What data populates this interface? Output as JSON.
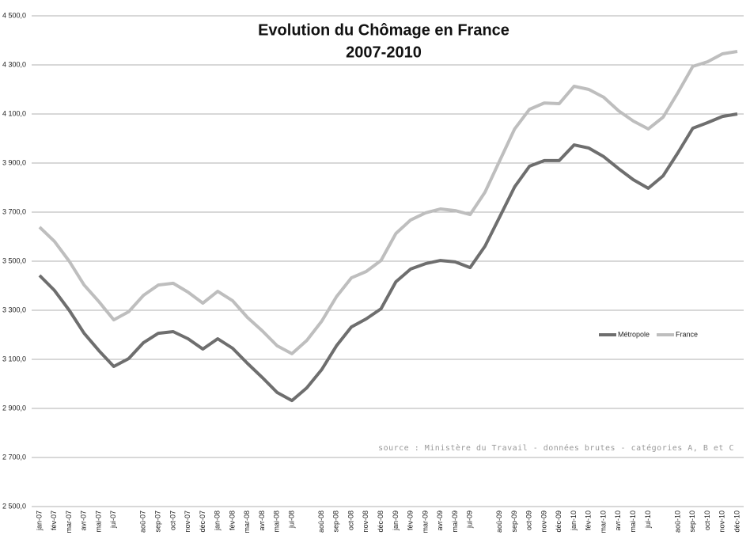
{
  "chart_data": {
    "type": "line",
    "title": "Evolution du Chômage en France",
    "subtitle": "2007-2010",
    "annotation": "source : Ministère du Travail - données brutes - catégories A, B et C",
    "categories": [
      "jan-07",
      "fév-07",
      "mar-07",
      "avr-07",
      "mai-07",
      "jui-07",
      null,
      "aoû-07",
      "sep-07",
      "oct-07",
      "nov-07",
      "déc-07",
      "jan-08",
      "fév-08",
      "mar-08",
      "avr-08",
      "mai-08",
      "jui-08",
      null,
      "aoû-08",
      "sep-08",
      "oct-08",
      "nov-08",
      "déc-08",
      "jan-09",
      "fév-09",
      "mar-09",
      "avr-09",
      "mai-09",
      "jui-09",
      null,
      "aoû-09",
      "sep-09",
      "oct-09",
      "nov-09",
      "déc-09",
      "jan-10",
      "fév-10",
      "mar-10",
      "avr-10",
      "mai-10",
      "jui-10",
      null,
      "aoû-10",
      "sep-10",
      "oct-10",
      "nov-10",
      "déc-10"
    ],
    "series": [
      {
        "name": "Métropole",
        "color": "#6e6e6e",
        "values": [
          3442,
          3381,
          3300,
          3206,
          3135,
          3071,
          3103,
          3168,
          3206,
          3213,
          3184,
          3142,
          3184,
          3145,
          3084,
          3026,
          2965,
          2932,
          2984,
          3058,
          3155,
          3232,
          3265,
          3306,
          3416,
          3468,
          3490,
          3503,
          3497,
          3474,
          3561,
          3681,
          3803,
          3887,
          3910,
          3910,
          3974,
          3961,
          3926,
          3877,
          3832,
          3797,
          3848,
          3942,
          4042,
          4065,
          4090,
          4100
        ]
      },
      {
        "name": "France",
        "color": "#bebebe",
        "values": [
          3639,
          3581,
          3500,
          3403,
          3335,
          3261,
          3294,
          3361,
          3403,
          3410,
          3374,
          3329,
          3377,
          3339,
          3271,
          3216,
          3155,
          3123,
          3177,
          3255,
          3355,
          3432,
          3458,
          3503,
          3613,
          3668,
          3697,
          3713,
          3706,
          3690,
          3781,
          3910,
          4039,
          4119,
          4145,
          4142,
          4213,
          4200,
          4168,
          4113,
          4071,
          4039,
          4087,
          4187,
          4294,
          4313,
          4345,
          4355
        ]
      }
    ],
    "ylim": [
      2500,
      4500
    ],
    "yticks": [
      {
        "value": 2500,
        "label": "2 500,0"
      },
      {
        "value": 2700,
        "label": "2 700,0"
      },
      {
        "value": 2900,
        "label": "2 900,0"
      },
      {
        "value": 3100,
        "label": "3 100,0"
      },
      {
        "value": 3300,
        "label": "3 300,0"
      },
      {
        "value": 3500,
        "label": "3 500,0"
      },
      {
        "value": 3700,
        "label": "3 700,0"
      },
      {
        "value": 3900,
        "label": "3 900,0"
      },
      {
        "value": 4100,
        "label": "4 100,0"
      },
      {
        "value": 4300,
        "label": "4 300,0"
      },
      {
        "value": 4500,
        "label": "4 500,0"
      }
    ],
    "grid": true,
    "legend": "right"
  }
}
